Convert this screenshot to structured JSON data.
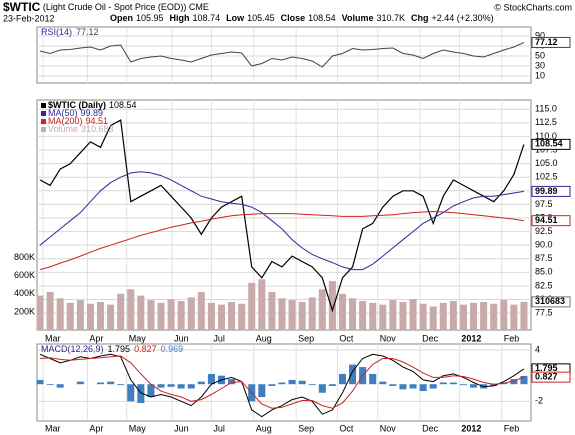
{
  "header": {
    "symbol": "$WTIC",
    "name": "(Light Crude Oil - Spot Price (EOD))",
    "exchange": "CME",
    "credit": "© StockCharts.com",
    "date": "23-Feb-2012",
    "quote": [
      {
        "label": "Open",
        "value": "105.95"
      },
      {
        "label": "High",
        "value": "108.74"
      },
      {
        "label": "Low",
        "value": "105.45"
      },
      {
        "label": "Close",
        "value": "108.54"
      },
      {
        "label": "Volume",
        "value": "310.7K"
      },
      {
        "label": "Chg",
        "value": "+2.44 (+2.30%)"
      }
    ]
  },
  "chart_data": [
    {
      "type": "line",
      "title": "RSI(14)",
      "xlim": [
        -0.3,
        48.7
      ],
      "ylim": [
        -4,
        108
      ],
      "yticks": [
        10,
        30,
        50,
        70,
        90
      ],
      "grid": true,
      "series": [
        {
          "color": "#444444",
          "values": [
            60,
            55,
            62,
            63,
            66,
            68,
            62,
            70,
            72,
            38,
            45,
            48,
            50,
            45,
            42,
            38,
            45,
            52,
            55,
            58,
            56,
            30,
            35,
            45,
            42,
            48,
            45,
            40,
            28,
            50,
            55,
            65,
            62,
            63,
            65,
            66,
            55,
            52,
            45,
            55,
            62,
            58,
            55,
            50,
            48,
            55,
            62,
            68,
            77.12
          ]
        }
      ]
    },
    {
      "type": "line",
      "xlim": [
        -0.3,
        48.7
      ],
      "ylim": [
        74.4,
        116.7
      ],
      "yticks": [
        77.5,
        {
          "value": 80,
          "label": "80.0"
        },
        82.5,
        {
          "value": 85,
          "label": "85.0"
        },
        87.5,
        {
          "value": 90,
          "label": "90.0"
        },
        92.5,
        {
          "value": 95,
          "label": "95.0"
        },
        97.5,
        {
          "value": 100,
          "label": "100.0"
        },
        102.5,
        {
          "value": 105,
          "label": "105.0"
        },
        107.5,
        {
          "value": 110,
          "label": "110.0"
        },
        112.5,
        {
          "value": 115,
          "label": "115.0"
        }
      ],
      "y2lim": [
        0,
        2540000
      ],
      "y2ticks": [
        {
          "value": 200000,
          "label": "200K"
        },
        {
          "value": 400000,
          "label": "400K"
        },
        {
          "value": 600000,
          "label": "600K"
        },
        {
          "value": 800000,
          "label": "800K"
        }
      ],
      "xticks": [
        {
          "value": 0.3,
          "label": "Mar"
        },
        {
          "value": 4.7,
          "label": "Apr"
        },
        {
          "value": 8.6,
          "label": "May"
        },
        {
          "value": 13.1,
          "label": "Jun"
        },
        {
          "value": 17,
          "label": "Jul"
        },
        {
          "value": 21.2,
          "label": "Aug"
        },
        {
          "value": 25.4,
          "label": "Sep"
        },
        {
          "value": 29.5,
          "label": "Oct"
        },
        {
          "value": 33.5,
          "label": "Nov"
        },
        {
          "value": 37.7,
          "label": "Dec"
        },
        {
          "value": 41.6,
          "label": "2012"
        },
        {
          "value": 45.8,
          "label": "Feb"
        }
      ],
      "grid": true,
      "series": [
        {
          "name": "$WTIC (Daily)",
          "color": "#000000",
          "values": [
            102,
            101,
            104,
            105,
            107,
            109,
            108,
            112,
            113,
            98,
            99,
            100,
            101,
            99,
            97,
            95,
            92,
            95,
            97,
            98,
            99,
            86,
            84,
            87,
            86,
            88,
            87,
            86,
            84,
            78,
            84,
            86,
            93,
            94,
            97,
            99,
            100,
            100,
            99,
            94,
            99,
            102,
            101,
            100,
            99,
            98,
            100,
            103,
            108.54
          ]
        },
        {
          "name": "MA(50)",
          "color": "#2a2a9a",
          "values": [
            90,
            91.5,
            93,
            94.5,
            96,
            98,
            100,
            101.5,
            102.5,
            103.3,
            103.5,
            103.3,
            102.8,
            102,
            101,
            100,
            99,
            98.5,
            98,
            97.7,
            97.5,
            97,
            96,
            94.5,
            93,
            91,
            89.5,
            88.3,
            87.5,
            86.8,
            86,
            85.5,
            85.5,
            86.5,
            88,
            89.5,
            91,
            92.5,
            94,
            95,
            96,
            97.2,
            98,
            98.7,
            99,
            99,
            99.3,
            99.6,
            99.89
          ]
        },
        {
          "name": "MA(200)",
          "color": "#cc2222",
          "values": [
            85.5,
            86,
            86.7,
            87.3,
            88,
            88.7,
            89.4,
            90,
            90.6,
            91.2,
            91.8,
            92.3,
            92.8,
            93.3,
            93.7,
            94.1,
            94.4,
            94.8,
            95.1,
            95.4,
            95.6,
            95.7,
            95.8,
            95.8,
            95.8,
            95.8,
            95.7,
            95.6,
            95.5,
            95.4,
            95.3,
            95.3,
            95.3,
            95.4,
            95.5,
            95.6,
            95.8,
            96,
            96.1,
            96.2,
            96.1,
            96,
            95.8,
            95.6,
            95.4,
            95.2,
            95,
            94.8,
            94.51
          ]
        },
        {
          "name": "Volume",
          "color": "#c9aaaa",
          "axis": "y2",
          "values": [
            380000,
            420000,
            350000,
            300000,
            330000,
            290000,
            310000,
            280000,
            400000,
            450000,
            380000,
            330000,
            300000,
            340000,
            320000,
            360000,
            420000,
            300000,
            280000,
            310000,
            290000,
            520000,
            560000,
            420000,
            350000,
            330000,
            310000,
            360000,
            450000,
            540000,
            400000,
            350000,
            320000,
            300000,
            280000,
            330000,
            310000,
            340000,
            290000,
            260000,
            300000,
            320000,
            280000,
            300000,
            310000,
            290000,
            330000,
            280000,
            310683
          ],
          "value_labels": {
            "48": "310,683"
          }
        }
      ]
    },
    {
      "type": "line",
      "title": "MACD(12,26,9)",
      "xlim": [
        -0.3,
        48.7
      ],
      "ylim": [
        -4.3,
        4.7
      ],
      "yticks": [
        -2,
        4
      ],
      "grid": true,
      "xticks": [
        {
          "value": 0.3,
          "label": "Mar"
        },
        {
          "value": 4.7,
          "label": "Apr"
        },
        {
          "value": 8.6,
          "label": "May"
        },
        {
          "value": 13.1,
          "label": "Jun"
        },
        {
          "value": 17,
          "label": "Jul"
        },
        {
          "value": 21.2,
          "label": "Aug"
        },
        {
          "value": 25.4,
          "label": "Sep"
        },
        {
          "value": 29.5,
          "label": "Oct"
        },
        {
          "value": 33.5,
          "label": "Nov"
        },
        {
          "value": 37.7,
          "label": "Dec"
        },
        {
          "value": 41.6,
          "label": "2012"
        },
        {
          "value": 45.8,
          "label": "Feb"
        }
      ],
      "series": [
        {
          "color": "#000000",
          "values": [
            3.5,
            3,
            2.5,
            2.8,
            3.2,
            3,
            3.3,
            3.5,
            3.2,
            0.5,
            -1,
            -1.5,
            -1.2,
            -1.5,
            -2,
            -2.5,
            -1.5,
            0,
            0.5,
            0.8,
            0.3,
            -3,
            -3.8,
            -3,
            -2.5,
            -1.8,
            -1.5,
            -2,
            -3.5,
            -3,
            -1,
            1.5,
            3,
            3.5,
            3.3,
            2.8,
            2,
            1.5,
            0.5,
            0.3,
            1,
            1.2,
            0.8,
            0.2,
            -0.3,
            -0.2,
            0.3,
            1,
            1.795
          ]
        },
        {
          "color": "#cc2222",
          "values": [
            3,
            3.1,
            2.9,
            2.8,
            2.9,
            3,
            3.1,
            3.2,
            3.3,
            2.5,
            1.2,
            0,
            -0.8,
            -1.2,
            -1.5,
            -2,
            -1.8,
            -1.2,
            -0.5,
            0.2,
            0.3,
            -1,
            -2.3,
            -2.8,
            -2.7,
            -2.3,
            -1.9,
            -1.9,
            -2.5,
            -2.8,
            -2.2,
            -0.8,
            1,
            2.3,
            3,
            3,
            2.6,
            2,
            1.3,
            0.8,
            0.8,
            1,
            0.9,
            0.6,
            0.2,
            0,
            0.1,
            0.4,
            0.827
          ]
        },
        {
          "color": "#3f7fbf",
          "bars": true,
          "values": [
            0.5,
            -0.1,
            -0.4,
            0,
            0.3,
            0,
            0.2,
            0.3,
            -0.1,
            -2,
            -2.2,
            -1.5,
            -0.4,
            -0.3,
            -0.5,
            -0.5,
            0.3,
            1.2,
            1,
            0.6,
            0,
            -2,
            -1.5,
            -0.2,
            0.2,
            0.5,
            0.4,
            -0.1,
            -1,
            -0.2,
            1.2,
            2.3,
            2,
            1.2,
            0.3,
            -0.2,
            -0.6,
            -0.5,
            -0.8,
            -0.5,
            0.2,
            0.2,
            -0.1,
            -0.4,
            -0.5,
            -0.2,
            0.2,
            0.6,
            0.969
          ]
        }
      ]
    }
  ]
}
